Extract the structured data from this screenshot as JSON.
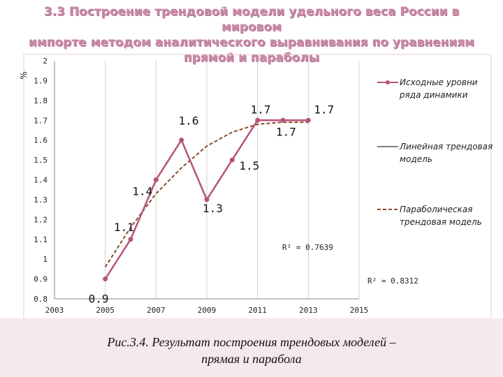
{
  "title_lines": [
    "3.3 Построение трендовой модели удельного веса России в мировом",
    "импорте методом аналитического выравнивания по уравнениям",
    "прямой и параболы"
  ],
  "caption_lines": [
    "Рис.3.4. Результат построения трендовых моделей –",
    "прямая и парабола"
  ],
  "chart_data": {
    "type": "line",
    "ylabel": "%",
    "ylim": [
      0.8,
      2
    ],
    "xlim": [
      2003,
      2015
    ],
    "y_ticks": [
      "0.8",
      "0.9",
      "1",
      "1.1",
      "1.2",
      "1.3",
      "1.4",
      "1.5",
      "1.6",
      "1.7",
      "1.8",
      "1.9",
      "2"
    ],
    "x_ticks": [
      "2003",
      "2005",
      "2007",
      "2009",
      "2011",
      "2013",
      "2015"
    ],
    "grid": "vertical",
    "series": [
      {
        "name": "Исходные уровни ряда динамики",
        "color": "#b5547b",
        "x": [
          2005,
          2006,
          2007,
          2008,
          2009,
          2010,
          2011,
          2012,
          2013
        ],
        "y": [
          0.9,
          1.1,
          1.4,
          1.6,
          1.3,
          1.5,
          1.7,
          1.7,
          1.7
        ]
      },
      {
        "name": "Линейная трендовая модель",
        "color": "#000000"
      },
      {
        "name": "Параболическая трендовая модель",
        "color": "#8b4a2b",
        "style": "dashed",
        "x": [
          2005,
          2006,
          2007,
          2008,
          2009,
          2010,
          2011,
          2012,
          2013
        ],
        "y": [
          0.96,
          1.16,
          1.33,
          1.46,
          1.57,
          1.64,
          1.68,
          1.69,
          1.69
        ]
      }
    ],
    "data_labels": [
      "0.9",
      "1.1",
      "1.4",
      "1.6",
      "1.3",
      "1.5",
      "1.7",
      "1.7",
      "1.7"
    ],
    "annotations": [
      "R² = 0.7639",
      "R² = 0.8312"
    ],
    "legend": "right"
  }
}
